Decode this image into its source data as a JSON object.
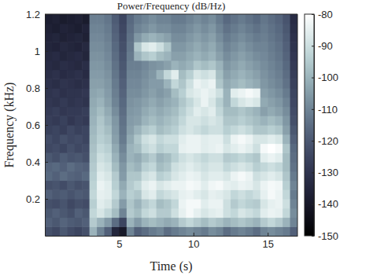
{
  "chart_data": {
    "type": "heatmap",
    "title": "Power/Frequency (dB/Hz)",
    "x_label": "Time (s)",
    "y_label": "Frequency (kHz)",
    "xlim": [
      0,
      17
    ],
    "xticks": [
      5,
      10,
      15
    ],
    "ylim": [
      0,
      1.2
    ],
    "yticks": [
      0.2,
      0.4,
      0.6,
      0.8,
      1,
      1.2
    ],
    "colorbar": {
      "range": [
        -150,
        -80
      ],
      "ticks": [
        -80,
        -90,
        -100,
        -110,
        -120,
        -130,
        -140,
        -150
      ]
    },
    "x": [
      0.25,
      0.75,
      1.25,
      1.75,
      2.25,
      2.75,
      3.25,
      3.75,
      4.25,
      4.75,
      5.25,
      5.75,
      6.25,
      6.75,
      7.25,
      7.75,
      8.25,
      8.75,
      9.25,
      9.75,
      10.25,
      10.75,
      11.25,
      11.75,
      12.25,
      12.75,
      13.25,
      13.75,
      14.25,
      14.75,
      15.25,
      15.75,
      16.25,
      16.75
    ],
    "y": [
      0.025,
      0.075,
      0.125,
      0.175,
      0.225,
      0.275,
      0.325,
      0.375,
      0.425,
      0.475,
      0.525,
      0.575,
      0.625,
      0.675,
      0.725,
      0.775,
      0.825,
      0.875,
      0.925,
      0.975,
      1.025,
      1.075,
      1.125,
      1.175
    ],
    "z": [
      [
        -122,
        -124,
        -120,
        -123,
        -125,
        -122,
        -100,
        -110,
        -118,
        -135,
        -140,
        -110,
        -118,
        -115,
        -112,
        -110,
        -115,
        -112,
        -110,
        -108,
        -110,
        -112,
        -108,
        -110,
        -115,
        -112,
        -110,
        -112,
        -115,
        -110,
        -108,
        -110,
        -112,
        -118
      ],
      [
        -118,
        -120,
        -117,
        -119,
        -120,
        -118,
        -95,
        -100,
        -105,
        -115,
        -125,
        -100,
        -105,
        -100,
        -98,
        -100,
        -102,
        -100,
        -95,
        -92,
        -95,
        -98,
        -95,
        -97,
        -100,
        -98,
        -96,
        -98,
        -100,
        -95,
        -92,
        -95,
        -100,
        -110
      ],
      [
        -120,
        -118,
        -120,
        -122,
        -118,
        -120,
        -92,
        -88,
        -92,
        -98,
        -110,
        -95,
        -98,
        -92,
        -90,
        -95,
        -95,
        -90,
        -85,
        -82,
        -85,
        -88,
        -86,
        -85,
        -90,
        -92,
        -88,
        -90,
        -92,
        -86,
        -84,
        -85,
        -92,
        -108
      ],
      [
        -122,
        -123,
        -121,
        -124,
        -122,
        -123,
        -94,
        -86,
        -88,
        -95,
        -105,
        -96,
        -100,
        -95,
        -92,
        -98,
        -96,
        -92,
        -84,
        -82,
        -82,
        -86,
        -84,
        -84,
        -90,
        -95,
        -92,
        -94,
        -95,
        -88,
        -85,
        -84,
        -90,
        -110
      ],
      [
        -118,
        -120,
        -119,
        -121,
        -119,
        -120,
        -92,
        -85,
        -86,
        -92,
        -100,
        -94,
        -96,
        -88,
        -86,
        -92,
        -90,
        -88,
        -85,
        -84,
        -86,
        -88,
        -85,
        -86,
        -88,
        -92,
        -90,
        -92,
        -90,
        -85,
        -82,
        -84,
        -92,
        -112
      ],
      [
        -122,
        -121,
        -123,
        -120,
        -122,
        -121,
        -93,
        -84,
        -86,
        -94,
        -102,
        -95,
        -92,
        -86,
        -84,
        -88,
        -86,
        -84,
        -84,
        -82,
        -83,
        -86,
        -83,
        -82,
        -85,
        -86,
        -84,
        -85,
        -88,
        -84,
        -82,
        -83,
        -94,
        -110
      ],
      [
        -116,
        -118,
        -115,
        -117,
        -118,
        -116,
        -94,
        -86,
        -88,
        -95,
        -105,
        -96,
        -96,
        -90,
        -88,
        -94,
        -92,
        -88,
        -86,
        -84,
        -85,
        -88,
        -86,
        -86,
        -88,
        -84,
        -82,
        -84,
        -90,
        -88,
        -86,
        -88,
        -96,
        -112
      ],
      [
        -117,
        -116,
        -118,
        -115,
        -117,
        -118,
        -95,
        -88,
        -90,
        -98,
        -106,
        -98,
        -100,
        -94,
        -92,
        -98,
        -96,
        -90,
        -88,
        -86,
        -88,
        -90,
        -88,
        -88,
        -92,
        -90,
        -88,
        -90,
        -94,
        -92,
        -90,
        -92,
        -98,
        -114
      ],
      [
        -120,
        -122,
        -119,
        -121,
        -120,
        -122,
        -96,
        -90,
        -92,
        -100,
        -108,
        -100,
        -102,
        -98,
        -95,
        -100,
        -98,
        -94,
        -90,
        -88,
        -90,
        -92,
        -90,
        -90,
        -95,
        -94,
        -92,
        -94,
        -96,
        -86,
        -84,
        -86,
        -98,
        -115
      ],
      [
        -124,
        -123,
        -125,
        -122,
        -124,
        -123,
        -97,
        -92,
        -94,
        -102,
        -110,
        -100,
        -98,
        -92,
        -90,
        -94,
        -92,
        -92,
        -85,
        -84,
        -84,
        -86,
        -85,
        -84,
        -88,
        -86,
        -84,
        -86,
        -90,
        -82,
        -80,
        -82,
        -96,
        -116
      ],
      [
        -123,
        -125,
        -122,
        -124,
        -123,
        -125,
        -98,
        -94,
        -96,
        -104,
        -112,
        -102,
        -96,
        -90,
        -88,
        -92,
        -90,
        -90,
        -86,
        -84,
        -84,
        -86,
        -85,
        -85,
        -90,
        -84,
        -82,
        -84,
        -88,
        -88,
        -86,
        -88,
        -100,
        -118
      ],
      [
        -126,
        -125,
        -127,
        -124,
        -126,
        -125,
        -99,
        -95,
        -98,
        -105,
        -113,
        -104,
        -100,
        -96,
        -94,
        -98,
        -96,
        -94,
        -90,
        -88,
        -90,
        -92,
        -90,
        -90,
        -94,
        -92,
        -90,
        -92,
        -96,
        -96,
        -94,
        -96,
        -104,
        -120
      ],
      [
        -127,
        -128,
        -126,
        -129,
        -127,
        -128,
        -100,
        -96,
        -100,
        -106,
        -114,
        -105,
        -104,
        -100,
        -98,
        -100,
        -98,
        -96,
        -92,
        -88,
        -88,
        -90,
        -88,
        -90,
        -96,
        -96,
        -94,
        -96,
        -98,
        -100,
        -98,
        -100,
        -106,
        -122
      ],
      [
        -128,
        -127,
        -129,
        -128,
        -128,
        -127,
        -101,
        -98,
        -102,
        -108,
        -115,
        -106,
        -105,
        -102,
        -100,
        -102,
        -100,
        -98,
        -94,
        -90,
        -86,
        -88,
        -86,
        -92,
        -98,
        -98,
        -96,
        -98,
        -100,
        -104,
        -102,
        -104,
        -108,
        -123
      ],
      [
        -129,
        -130,
        -128,
        -130,
        -129,
        -130,
        -102,
        -100,
        -104,
        -110,
        -116,
        -107,
        -106,
        -104,
        -102,
        -104,
        -102,
        -100,
        -96,
        -92,
        -88,
        -84,
        -88,
        -94,
        -100,
        -92,
        -88,
        -86,
        -88,
        -102,
        -104,
        -106,
        -110,
        -124
      ],
      [
        -130,
        -129,
        -131,
        -130,
        -130,
        -129,
        -103,
        -102,
        -105,
        -111,
        -117,
        -108,
        -108,
        -106,
        -104,
        -106,
        -104,
        -98,
        -94,
        -88,
        -86,
        -84,
        -86,
        -90,
        -100,
        -86,
        -84,
        -82,
        -84,
        -104,
        -106,
        -108,
        -112,
        -125
      ],
      [
        -131,
        -132,
        -130,
        -131,
        -132,
        -131,
        -104,
        -104,
        -106,
        -112,
        -118,
        -109,
        -109,
        -107,
        -105,
        -105,
        -100,
        -92,
        -96,
        -90,
        -84,
        -86,
        -84,
        -96,
        -102,
        -100,
        -98,
        -100,
        -102,
        -106,
        -108,
        -110,
        -114,
        -126
      ],
      [
        -132,
        -131,
        -133,
        -132,
        -131,
        -133,
        -105,
        -105,
        -107,
        -113,
        -119,
        -110,
        -110,
        -108,
        -106,
        -100,
        -92,
        -86,
        -98,
        -94,
        -88,
        -90,
        -88,
        -98,
        -104,
        -102,
        -100,
        -102,
        -104,
        -107,
        -109,
        -111,
        -115,
        -127
      ],
      [
        -133,
        -134,
        -132,
        -133,
        -134,
        -132,
        -106,
        -106,
        -108,
        -114,
        -120,
        -111,
        -111,
        -109,
        -107,
        -106,
        -104,
        -100,
        -102,
        -100,
        -96,
        -98,
        -96,
        -100,
        -106,
        -104,
        -102,
        -104,
        -106,
        -108,
        -110,
        -112,
        -116,
        -128
      ],
      [
        -134,
        -133,
        -135,
        -134,
        -133,
        -135,
        -107,
        -107,
        -109,
        -115,
        -121,
        -112,
        -100,
        -96,
        -94,
        -98,
        -100,
        -104,
        -104,
        -102,
        -100,
        -102,
        -100,
        -104,
        -108,
        -106,
        -104,
        -106,
        -108,
        -109,
        -111,
        -113,
        -117,
        -129
      ],
      [
        -135,
        -136,
        -134,
        -135,
        -136,
        -134,
        -108,
        -108,
        -110,
        -116,
        -122,
        -113,
        -96,
        -88,
        -86,
        -90,
        -96,
        -106,
        -106,
        -104,
        -102,
        -104,
        -102,
        -106,
        -110,
        -108,
        -106,
        -108,
        -110,
        -110,
        -112,
        -114,
        -118,
        -130
      ],
      [
        -136,
        -135,
        -137,
        -136,
        -135,
        -137,
        -109,
        -109,
        -111,
        -117,
        -123,
        -114,
        -106,
        -102,
        -100,
        -102,
        -104,
        -108,
        -108,
        -106,
        -104,
        -106,
        -104,
        -108,
        -112,
        -110,
        -108,
        -110,
        -112,
        -111,
        -113,
        -115,
        -119,
        -131
      ],
      [
        -137,
        -138,
        -136,
        -137,
        -138,
        -136,
        -110,
        -110,
        -112,
        -118,
        -124,
        -115,
        -110,
        -108,
        -106,
        -108,
        -108,
        -110,
        -110,
        -108,
        -106,
        -108,
        -106,
        -110,
        -114,
        -112,
        -110,
        -112,
        -114,
        -112,
        -114,
        -116,
        -120,
        -132
      ],
      [
        -138,
        -137,
        -139,
        -138,
        -137,
        -139,
        -111,
        -111,
        -113,
        -119,
        -125,
        -116,
        -112,
        -110,
        -108,
        -110,
        -110,
        -112,
        -112,
        -110,
        -108,
        -110,
        -108,
        -112,
        -116,
        -114,
        -112,
        -114,
        -116,
        -113,
        -115,
        -117,
        -121,
        -133
      ]
    ]
  }
}
